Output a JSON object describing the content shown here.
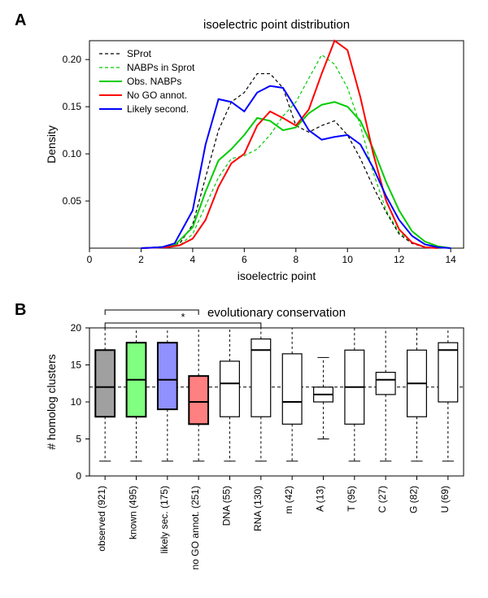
{
  "panelA": {
    "label": "A",
    "title": "isoelectric point distribution",
    "xlabel": "isoelectric point",
    "ylabel": "Density",
    "xlim": [
      0,
      14.5
    ],
    "ylim": [
      0,
      0.22
    ],
    "xticks": [
      0,
      2,
      4,
      6,
      8,
      10,
      12,
      14
    ],
    "yticks": [
      0.05,
      0.1,
      0.15,
      0.2
    ],
    "background": "#ffffff",
    "axis_color": "#000000",
    "series": {
      "sprot": {
        "label": "SProt",
        "color": "#000000",
        "dash": "4,3",
        "width": 1.2,
        "points": [
          [
            2,
            0
          ],
          [
            3,
            0.002
          ],
          [
            3.5,
            0.005
          ],
          [
            4,
            0.025
          ],
          [
            4.5,
            0.075
          ],
          [
            5,
            0.125
          ],
          [
            5.5,
            0.155
          ],
          [
            6,
            0.165
          ],
          [
            6.5,
            0.185
          ],
          [
            7,
            0.185
          ],
          [
            7.5,
            0.17
          ],
          [
            8,
            0.13
          ],
          [
            8.5,
            0.123
          ],
          [
            9,
            0.13
          ],
          [
            9.5,
            0.135
          ],
          [
            10,
            0.12
          ],
          [
            10.5,
            0.095
          ],
          [
            11,
            0.065
          ],
          [
            11.5,
            0.038
          ],
          [
            12,
            0.015
          ],
          [
            12.5,
            0.005
          ],
          [
            13,
            0.001
          ],
          [
            13.5,
            0
          ]
        ]
      },
      "nabps_sprot": {
        "label": "NABPs in Sprot",
        "color": "#00cc00",
        "dash": "4,3",
        "width": 1.2,
        "points": [
          [
            2,
            0
          ],
          [
            3,
            0.001
          ],
          [
            3.5,
            0.003
          ],
          [
            4,
            0.015
          ],
          [
            4.5,
            0.045
          ],
          [
            5,
            0.075
          ],
          [
            5.5,
            0.095
          ],
          [
            6,
            0.098
          ],
          [
            6.5,
            0.105
          ],
          [
            7,
            0.12
          ],
          [
            7.5,
            0.14
          ],
          [
            8,
            0.155
          ],
          [
            8.5,
            0.18
          ],
          [
            9,
            0.205
          ],
          [
            9.5,
            0.195
          ],
          [
            10,
            0.17
          ],
          [
            10.5,
            0.13
          ],
          [
            11,
            0.08
          ],
          [
            11.5,
            0.04
          ],
          [
            12,
            0.017
          ],
          [
            12.5,
            0.006
          ],
          [
            13,
            0.001
          ],
          [
            13.5,
            0
          ]
        ]
      },
      "obs_nabps": {
        "label": "Obs. NABPs",
        "color": "#00cc00",
        "dash": "none",
        "width": 2,
        "points": [
          [
            2,
            0
          ],
          [
            2.8,
            0.001
          ],
          [
            3.3,
            0.003
          ],
          [
            4,
            0.022
          ],
          [
            4.5,
            0.06
          ],
          [
            5,
            0.093
          ],
          [
            5.5,
            0.105
          ],
          [
            6,
            0.12
          ],
          [
            6.5,
            0.138
          ],
          [
            7,
            0.135
          ],
          [
            7.5,
            0.125
          ],
          [
            8,
            0.128
          ],
          [
            8.5,
            0.143
          ],
          [
            9,
            0.152
          ],
          [
            9.5,
            0.155
          ],
          [
            10,
            0.15
          ],
          [
            10.5,
            0.135
          ],
          [
            11,
            0.105
          ],
          [
            11.5,
            0.07
          ],
          [
            12,
            0.04
          ],
          [
            12.5,
            0.018
          ],
          [
            13,
            0.007
          ],
          [
            13.5,
            0.002
          ],
          [
            14,
            0
          ]
        ]
      },
      "no_go": {
        "label": "No GO annot.",
        "color": "#ff0000",
        "dash": "none",
        "width": 2,
        "points": [
          [
            2,
            0
          ],
          [
            3,
            0.001
          ],
          [
            3.5,
            0.003
          ],
          [
            4,
            0.01
          ],
          [
            4.5,
            0.03
          ],
          [
            5,
            0.065
          ],
          [
            5.5,
            0.09
          ],
          [
            6,
            0.1
          ],
          [
            6.5,
            0.13
          ],
          [
            7,
            0.145
          ],
          [
            7.5,
            0.138
          ],
          [
            8,
            0.13
          ],
          [
            8.5,
            0.147
          ],
          [
            9,
            0.185
          ],
          [
            9.5,
            0.22
          ],
          [
            10,
            0.21
          ],
          [
            10.5,
            0.16
          ],
          [
            11,
            0.1
          ],
          [
            11.5,
            0.05
          ],
          [
            12,
            0.02
          ],
          [
            12.5,
            0.006
          ],
          [
            13,
            0.001
          ],
          [
            13.5,
            0
          ]
        ]
      },
      "likely_second": {
        "label": "Likely second.",
        "color": "#0000ff",
        "dash": "none",
        "width": 2,
        "points": [
          [
            2,
            0
          ],
          [
            2.8,
            0.001
          ],
          [
            3.3,
            0.005
          ],
          [
            4,
            0.04
          ],
          [
            4.5,
            0.11
          ],
          [
            5,
            0.158
          ],
          [
            5.5,
            0.155
          ],
          [
            6,
            0.145
          ],
          [
            6.5,
            0.165
          ],
          [
            7,
            0.172
          ],
          [
            7.5,
            0.17
          ],
          [
            8,
            0.148
          ],
          [
            8.5,
            0.125
          ],
          [
            9,
            0.115
          ],
          [
            9.5,
            0.118
          ],
          [
            10,
            0.12
          ],
          [
            10.5,
            0.11
          ],
          [
            11,
            0.085
          ],
          [
            11.5,
            0.055
          ],
          [
            12,
            0.03
          ],
          [
            12.5,
            0.013
          ],
          [
            13,
            0.004
          ],
          [
            13.5,
            0.001
          ],
          [
            14,
            0
          ]
        ]
      }
    }
  },
  "panelB": {
    "label": "B",
    "title": "evolutionary conservation",
    "ylabel": "# homolog clusters",
    "ylim": [
      0,
      20
    ],
    "yticks": [
      0,
      5,
      10,
      15,
      20
    ],
    "ref_line": 12,
    "ref_color": "#000000",
    "ref_dash": "4,3",
    "sig1": {
      "label": "***",
      "from": 0,
      "to": 3
    },
    "sig2": {
      "label": "*",
      "from": 0,
      "to": 5
    },
    "boxes": [
      {
        "label": "observed (921)",
        "q0": 2,
        "q1": 8,
        "med": 12,
        "q3": 17,
        "q4": 20,
        "fill": "#a0a0a0",
        "stroke": "#000000",
        "stroke_w": 2
      },
      {
        "label": "known (495)",
        "q0": 2,
        "q1": 8,
        "med": 13,
        "q3": 18,
        "q4": 20,
        "fill": "#80ff80",
        "stroke": "#000000",
        "stroke_w": 2
      },
      {
        "label": "likely sec. (175)",
        "q0": 2,
        "q1": 9,
        "med": 13,
        "q3": 18,
        "q4": 20,
        "fill": "#9090ff",
        "stroke": "#000000",
        "stroke_w": 2
      },
      {
        "label": "no GO annot. (251)",
        "q0": 2,
        "q1": 7,
        "med": 10,
        "q3": 13.5,
        "q4": 20,
        "fill": "#ff8080",
        "stroke": "#000000",
        "stroke_w": 2
      },
      {
        "label": "DNA (55)",
        "q0": 2,
        "q1": 8,
        "med": 12.5,
        "q3": 15.5,
        "q4": 20,
        "fill": "#ffffff",
        "stroke": "#000000",
        "stroke_w": 1.2
      },
      {
        "label": "RNA (130)",
        "q0": 2,
        "q1": 8,
        "med": 17,
        "q3": 18.5,
        "q4": 20,
        "fill": "#ffffff",
        "stroke": "#000000",
        "stroke_w": 1.2
      },
      {
        "label": "m (42)",
        "q0": 2,
        "q1": 7,
        "med": 10,
        "q3": 16.5,
        "q4": 20,
        "fill": "#ffffff",
        "stroke": "#000000",
        "stroke_w": 1.2
      },
      {
        "label": "A (13)",
        "q0": 5,
        "q1": 10,
        "med": 11,
        "q3": 12,
        "q4": 16,
        "fill": "#ffffff",
        "stroke": "#000000",
        "stroke_w": 1.2
      },
      {
        "label": "T (95)",
        "q0": 2,
        "q1": 7,
        "med": 12,
        "q3": 17,
        "q4": 20,
        "fill": "#ffffff",
        "stroke": "#000000",
        "stroke_w": 1.2
      },
      {
        "label": "C (27)",
        "q0": 2,
        "q1": 11,
        "med": 13,
        "q3": 14,
        "q4": 20,
        "fill": "#ffffff",
        "stroke": "#000000",
        "stroke_w": 1.2
      },
      {
        "label": "G (82)",
        "q0": 2,
        "q1": 8,
        "med": 12.5,
        "q3": 17,
        "q4": 20,
        "fill": "#ffffff",
        "stroke": "#000000",
        "stroke_w": 1.2
      },
      {
        "label": "U (69)",
        "q0": 2,
        "q1": 10,
        "med": 17,
        "q3": 18,
        "q4": 20,
        "fill": "#ffffff",
        "stroke": "#000000",
        "stroke_w": 1.2
      }
    ]
  }
}
